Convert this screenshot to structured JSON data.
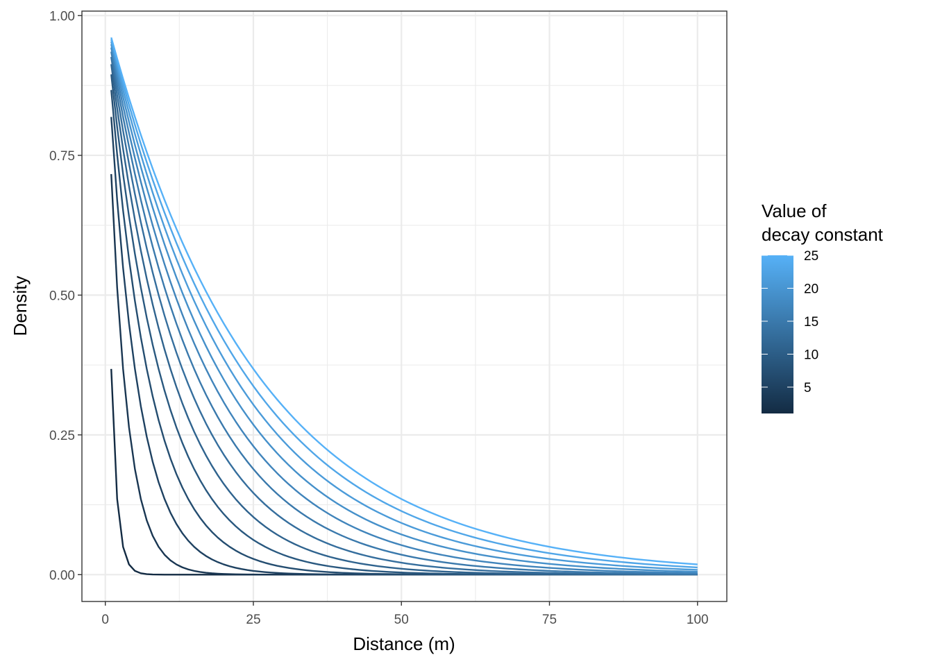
{
  "chart_data": {
    "type": "line",
    "title": "",
    "xlabel": "Distance (m)",
    "ylabel": "Density",
    "xlim": [
      -3.95,
      104.95
    ],
    "ylim": [
      -0.048,
      1.008
    ],
    "x_ticks": [
      0,
      25,
      50,
      75,
      100
    ],
    "x_tick_labels": [
      "0",
      "25",
      "50",
      "75",
      "100"
    ],
    "y_ticks": [
      0,
      0.25,
      0.5,
      0.75,
      1
    ],
    "y_tick_labels": [
      "0.00",
      "0.25",
      "0.50",
      "0.75",
      "1.00"
    ],
    "grid": true,
    "function": "y = exp(-x / decay_constant)",
    "x_domain": [
      1,
      100
    ],
    "decay_constants": [
      1,
      3,
      5,
      7,
      9,
      11,
      13,
      15,
      17,
      19,
      21,
      23,
      25
    ],
    "series_start_values": [
      {
        "decay_constant": 1,
        "x": 1,
        "y": 0.368
      },
      {
        "decay_constant": 3,
        "x": 1,
        "y": 0.717
      },
      {
        "decay_constant": 5,
        "x": 1,
        "y": 0.819
      },
      {
        "decay_constant": 7,
        "x": 1,
        "y": 0.867
      },
      {
        "decay_constant": 9,
        "x": 1,
        "y": 0.895
      },
      {
        "decay_constant": 11,
        "x": 1,
        "y": 0.913
      },
      {
        "decay_constant": 13,
        "x": 1,
        "y": 0.926
      },
      {
        "decay_constant": 15,
        "x": 1,
        "y": 0.936
      },
      {
        "decay_constant": 17,
        "x": 1,
        "y": 0.943
      },
      {
        "decay_constant": 19,
        "x": 1,
        "y": 0.949
      },
      {
        "decay_constant": 21,
        "x": 1,
        "y": 0.953
      },
      {
        "decay_constant": 23,
        "x": 1,
        "y": 0.957
      },
      {
        "decay_constant": 25,
        "x": 1,
        "y": 0.961
      }
    ],
    "color_scale": {
      "low": "#132B43",
      "high": "#56B1F7",
      "range": [
        1,
        25
      ]
    },
    "legend": {
      "title_line1": "Value of",
      "title_line2": "decay constant",
      "position": "right",
      "ticks": [
        5,
        10,
        15,
        20,
        25
      ],
      "tick_labels": [
        "5",
        "10",
        "15",
        "20",
        "25"
      ]
    }
  }
}
